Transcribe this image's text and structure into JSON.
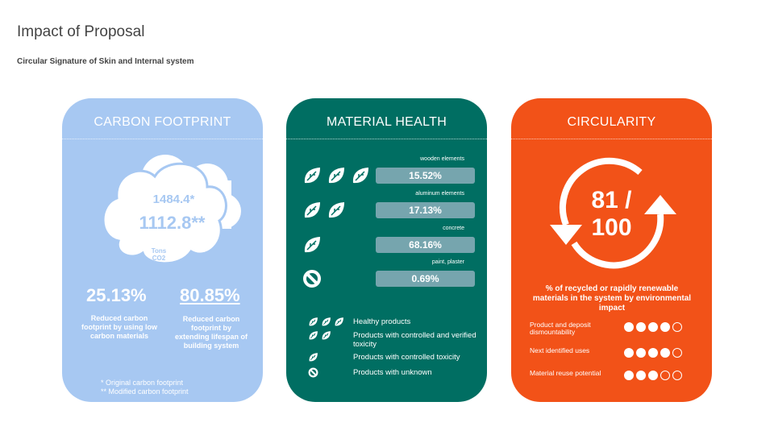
{
  "header": {
    "title": "Impact of Proposal",
    "subtitle": "Circular Signature of Skin and Internal system"
  },
  "colors": {
    "carbon": "#a7c8f2",
    "health": "#006e62",
    "circularity": "#f25218",
    "bar": "#76a5ae"
  },
  "carbon": {
    "title": "CARBON FOOTPRINT",
    "original": "1484.4*",
    "modified": "1112.8**",
    "unit1": "Tons",
    "unit2": "CO2",
    "stats": [
      {
        "value": "25.13%",
        "label": "Reduced carbon footprint by using low carbon materials"
      },
      {
        "value": "80.85%",
        "label": "Reduced carbon footprint by extending lifespan of building system"
      }
    ],
    "notes": [
      "* Original carbon footprint",
      "** Modified carbon footprint"
    ]
  },
  "health": {
    "title": "MATERIAL HEALTH",
    "rows": [
      {
        "label": "wooden elements",
        "value": "15.52%",
        "leaves": 3,
        "icon": "leaf-icon"
      },
      {
        "label": "aluminum elements",
        "value": "17.13%",
        "leaves": 2,
        "icon": "leaf-icon"
      },
      {
        "label": "concrete",
        "value": "68.16%",
        "leaves": 1,
        "icon": "leaf-icon"
      },
      {
        "label": "paint, plaster",
        "value": "0.69%",
        "leaves": 0,
        "icon": "prohibited-icon"
      }
    ],
    "legend": [
      {
        "label": "Healthy products",
        "leaves": 3
      },
      {
        "label": "Products with controlled and verified toxicity",
        "leaves": 2
      },
      {
        "label": "Products with controlled toxicity",
        "leaves": 1
      },
      {
        "label": "Products with unknown",
        "leaves": 0
      }
    ]
  },
  "circularity": {
    "title": "CIRCULARITY",
    "score_line1": "81 /",
    "score_line2": "100",
    "description": "% of recycled or rapidly renewable materials in the system by environmental impact",
    "ratings": [
      {
        "label": "Product and deposit dismountability",
        "score": 4,
        "max": 5
      },
      {
        "label": "Next identified uses",
        "score": 4,
        "max": 5
      },
      {
        "label": "Material reuse potential",
        "score": 3,
        "max": 5
      }
    ]
  }
}
